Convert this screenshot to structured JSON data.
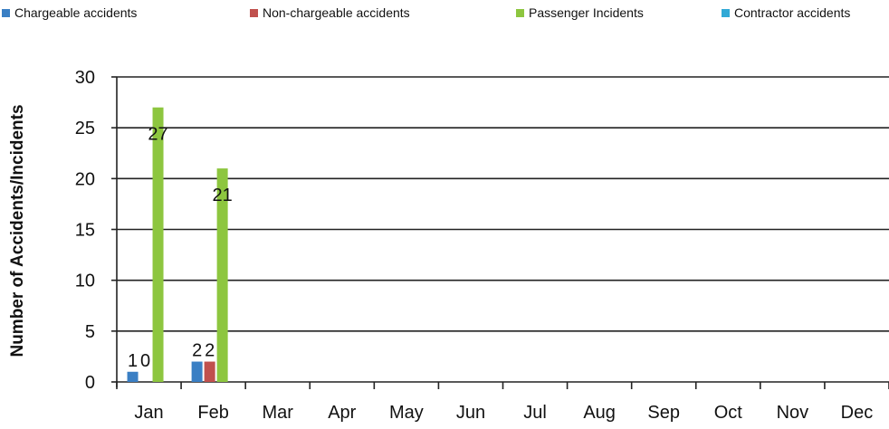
{
  "chart_data": {
    "type": "bar",
    "title": "",
    "xlabel": "",
    "ylabel": "Number of Accidents/Incidents",
    "ylim": [
      0,
      30
    ],
    "yticks": [
      0,
      5,
      10,
      15,
      20,
      25,
      30
    ],
    "grid": true,
    "legend_position": "top",
    "categories": [
      "Jan",
      "Feb",
      "Mar",
      "Apr",
      "May",
      "Jun",
      "Jul",
      "Aug",
      "Sep",
      "Oct",
      "Nov",
      "Dec"
    ],
    "series": [
      {
        "name": "Chargeable accidents",
        "color": "#3a7fc4",
        "values": [
          1,
          2,
          null,
          null,
          null,
          null,
          null,
          null,
          null,
          null,
          null,
          null
        ]
      },
      {
        "name": "Non-chargeable accidents",
        "color": "#c0504d",
        "values": [
          0,
          2,
          null,
          null,
          null,
          null,
          null,
          null,
          null,
          null,
          null,
          null
        ]
      },
      {
        "name": "Passenger Incidents",
        "color": "#8dc63f",
        "values": [
          27,
          21,
          null,
          null,
          null,
          null,
          null,
          null,
          null,
          null,
          null,
          null
        ]
      },
      {
        "name": "Contractor accidents",
        "color": "#31a9d6",
        "values": [
          0,
          0,
          null,
          null,
          null,
          null,
          null,
          null,
          null,
          null,
          null,
          null
        ]
      }
    ],
    "data_labels": [
      {
        "category": "Jan",
        "text": "1",
        "series": 0
      },
      {
        "category": "Jan",
        "text": "0",
        "series": 1
      },
      {
        "category": "Jan",
        "text": "27",
        "series": 2
      },
      {
        "category": "Feb",
        "text": "2",
        "series": 0
      },
      {
        "category": "Feb",
        "text": "2",
        "series": 1
      },
      {
        "category": "Feb",
        "text": "21",
        "series": 2
      }
    ]
  }
}
